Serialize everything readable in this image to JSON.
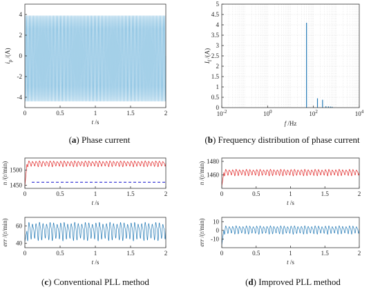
{
  "colors": {
    "current": "#5aa9d6",
    "speed": "#e02020",
    "ref": "#2020d0",
    "error": "#1f77b4"
  },
  "chart_data": [
    {
      "id": "a",
      "type": "line",
      "caption": {
        "letter": "a",
        "text": " Phase current"
      },
      "xlabel": {
        "sym": "t",
        "unit": " /s"
      },
      "ylabel": {
        "sym": "i",
        "sub": "p",
        "unit": "/(A)"
      },
      "xlim": [
        0,
        2
      ],
      "ylim": [
        -5,
        5
      ],
      "xticks": [
        "0",
        "0.5",
        "1",
        "1.5",
        "2"
      ],
      "yticks": [
        "-4",
        "-2",
        "0",
        "2",
        "4"
      ],
      "signal": {
        "shape": "sine",
        "amplitude_pos": 3.9,
        "amplitude_neg": -4.4,
        "cycles": 100
      }
    },
    {
      "id": "b",
      "type": "bar",
      "caption": {
        "letter": "b",
        "text": " Frequency distribution of phase current"
      },
      "xlabel": {
        "sym": "f",
        "unit": " /Hz"
      },
      "ylabel": {
        "sym": "I",
        "sub": "f",
        "unit": "/(A)"
      },
      "xscale": "log",
      "xlim": [
        0.01,
        10000
      ],
      "ylim": [
        0,
        5
      ],
      "xticks": [
        {
          "base": "10",
          "exp": "-2"
        },
        {
          "base": "10",
          "exp": "0"
        },
        {
          "base": "10",
          "exp": "2"
        },
        {
          "base": "10",
          "exp": "4"
        }
      ],
      "yticks": [
        "0",
        "0.5",
        "1",
        "1.5",
        "2",
        "2.5",
        "3",
        "3.5",
        "4",
        "4.5",
        "5"
      ],
      "grid": true,
      "x": [
        50,
        150,
        250,
        350,
        450,
        550,
        650
      ],
      "values": [
        4.1,
        0.45,
        0.38,
        0.07,
        0.06,
        0.05,
        0.04
      ]
    },
    {
      "id": "c",
      "type": "line",
      "caption": {
        "letter": "c",
        "text": " Conventional PLL method"
      },
      "panels": [
        {
          "xlabel": {
            "sym": "t",
            "unit": " /s"
          },
          "ylabel": {
            "sym": "n",
            "unit": "/(r/min)"
          },
          "xlim": [
            0,
            2
          ],
          "ylim": [
            1440,
            1540
          ],
          "xticks": [
            "0",
            "0.5",
            "1",
            "1.5",
            "2"
          ],
          "yticks": [
            "1450",
            "1500"
          ],
          "series": [
            {
              "name": "",
              "shape": "oscillation",
              "mean": 1522,
              "amplitude": 10,
              "cycles": 40,
              "start": 1447,
              "color_key": "speed"
            },
            {
              "name": "",
              "shape": "constant",
              "value": 1460,
              "dashed": true,
              "color_key": "ref"
            }
          ]
        },
        {
          "xlabel": {
            "sym": "t",
            "unit": " /s"
          },
          "ylabel": {
            "sym": "err",
            "unit": "/(r/min)"
          },
          "xlim": [
            0,
            2
          ],
          "ylim": [
            35,
            70
          ],
          "xticks": [
            "0",
            "0.5",
            "1",
            "1.5",
            "2"
          ],
          "yticks": [
            "40",
            "60"
          ],
          "series": [
            {
              "name": "",
              "shape": "oscillation",
              "mean": 55,
              "amplitude": 11,
              "cycles": 40,
              "start": 42,
              "color_key": "error"
            }
          ]
        }
      ]
    },
    {
      "id": "d",
      "type": "line",
      "caption": {
        "letter": "d",
        "text": " Improved PLL method"
      },
      "panels": [
        {
          "xlabel": {
            "sym": "t",
            "unit": " /s"
          },
          "ylabel": {
            "sym": "n",
            "unit": "/(r/min)"
          },
          "xlim": [
            0,
            2
          ],
          "ylim": [
            1440,
            1485
          ],
          "xticks": [
            "0",
            "0.5",
            "1",
            "1.5",
            "2"
          ],
          "yticks": [
            "1460",
            "1480"
          ],
          "series": [
            {
              "name": "",
              "shape": "oscillation",
              "mean": 1464,
              "amplitude": 5,
              "cycles": 40,
              "start": 1443,
              "color_key": "speed"
            }
          ]
        },
        {
          "xlabel": {
            "sym": "t",
            "unit": " /s"
          },
          "ylabel": {
            "sym": "err",
            "unit": "/(r/min)"
          },
          "xlim": [
            0,
            2
          ],
          "ylim": [
            -20,
            15
          ],
          "xticks": [
            "0",
            "0.5",
            "1",
            "1.5",
            "2"
          ],
          "yticks": [
            "-10",
            "0",
            "10"
          ],
          "series": [
            {
              "name": "",
              "shape": "oscillation",
              "mean": 1,
              "amplitude": 5,
              "cycles": 40,
              "start": -17,
              "color_key": "error"
            }
          ]
        }
      ]
    }
  ]
}
